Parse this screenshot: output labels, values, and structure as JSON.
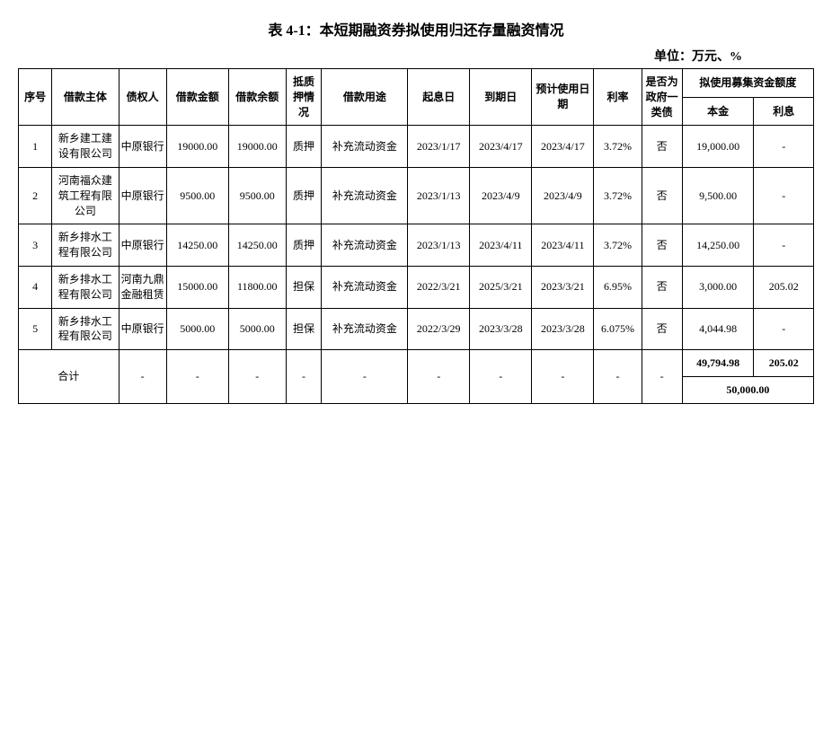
{
  "title": "表 4-1：本短期融资券拟使用归还存量融资情况",
  "unit_label": "单位：万元、%",
  "headers": {
    "seq": "序号",
    "borrower": "借款主体",
    "creditor": "债权人",
    "loan_amount": "借款金额",
    "loan_balance": "借款余额",
    "pledge": "抵质押情况",
    "purpose": "借款用途",
    "start_date": "起息日",
    "end_date": "到期日",
    "expect_date": "预计使用日期",
    "rate": "利率",
    "gov_debt": "是否为政府一类债",
    "funds": "拟使用募集资金额度",
    "principal": "本金",
    "interest": "利息"
  },
  "rows": [
    {
      "seq": "1",
      "borrower": "新乡建工建设有限公司",
      "creditor": "中原银行",
      "loan_amount": "19000.00",
      "loan_balance": "19000.00",
      "pledge": "质押",
      "purpose": "补充流动资金",
      "start_date": "2023/1/17",
      "end_date": "2023/4/17",
      "expect_date": "2023/4/17",
      "rate": "3.72%",
      "gov_debt": "否",
      "principal": "19,000.00",
      "interest": "-"
    },
    {
      "seq": "2",
      "borrower": "河南福众建筑工程有限公司",
      "creditor": "中原银行",
      "loan_amount": "9500.00",
      "loan_balance": "9500.00",
      "pledge": "质押",
      "purpose": "补充流动资金",
      "start_date": "2023/1/13",
      "end_date": "2023/4/9",
      "expect_date": "2023/4/9",
      "rate": "3.72%",
      "gov_debt": "否",
      "principal": "9,500.00",
      "interest": "-"
    },
    {
      "seq": "3",
      "borrower": "新乡排水工程有限公司",
      "creditor": "中原银行",
      "loan_amount": "14250.00",
      "loan_balance": "14250.00",
      "pledge": "质押",
      "purpose": "补充流动资金",
      "start_date": "2023/1/13",
      "end_date": "2023/4/11",
      "expect_date": "2023/4/11",
      "rate": "3.72%",
      "gov_debt": "否",
      "principal": "14,250.00",
      "interest": "-"
    },
    {
      "seq": "4",
      "borrower": "新乡排水工程有限公司",
      "creditor": "河南九鼎金融租赁",
      "loan_amount": "15000.00",
      "loan_balance": "11800.00",
      "pledge": "担保",
      "purpose": "补充流动资金",
      "start_date": "2022/3/21",
      "end_date": "2025/3/21",
      "expect_date": "2023/3/21",
      "rate": "6.95%",
      "gov_debt": "否",
      "principal": "3,000.00",
      "interest": "205.02"
    },
    {
      "seq": "5",
      "borrower": "新乡排水工程有限公司",
      "creditor": "中原银行",
      "loan_amount": "5000.00",
      "loan_balance": "5000.00",
      "pledge": "担保",
      "purpose": "补充流动资金",
      "start_date": "2022/3/29",
      "end_date": "2023/3/28",
      "expect_date": "2023/3/28",
      "rate": "6.075%",
      "gov_debt": "否",
      "principal": "4,044.98",
      "interest": "-"
    }
  ],
  "totals": {
    "label": "合计",
    "dash": "-",
    "principal": "49,794.98",
    "interest": "205.02",
    "grand_total": "50,000.00"
  }
}
